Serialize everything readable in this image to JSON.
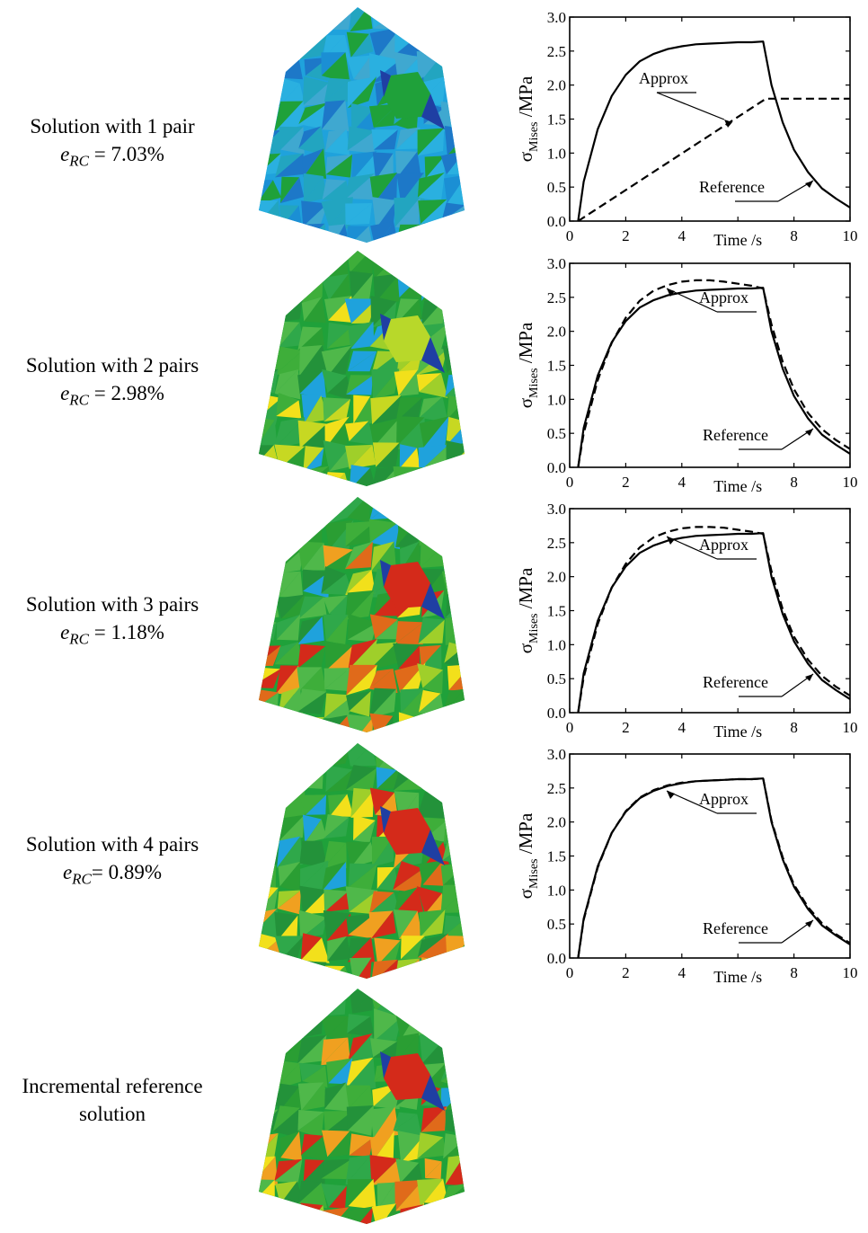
{
  "rows": [
    {
      "label": "Solution with 1 pair",
      "err_symbol": "e",
      "err_sub": "RC",
      "err_eq": " = ",
      "err_value": "7.03%"
    },
    {
      "label": "Solution with 2 pairs",
      "err_symbol": "e",
      "err_sub": "RC",
      "err_eq": " = ",
      "err_value": "2.98%"
    },
    {
      "label": "Solution with 3 pairs",
      "err_symbol": "e",
      "err_sub": "RC",
      "err_eq": " = ",
      "err_value": "1.18%"
    },
    {
      "label": "Solution with 4 pairs",
      "err_symbol": "e",
      "err_sub": "RC",
      "err_eq": "= ",
      "err_value": "0.89%"
    },
    {
      "label": "Incremental reference solution"
    }
  ],
  "colors": {
    "blue_field": "#1fa2dc",
    "green_field": "#1fa13a",
    "yellow": "#f2e01b",
    "red": "#d42a1a",
    "dark_blue": "#1f3fa3"
  },
  "chart_data": [
    {
      "type": "line",
      "xlabel": "Time /s",
      "ylabel_main": "σ",
      "ylabel_sub": "Mises",
      "ylabel_unit": " /MPa",
      "xlim": [
        0,
        10
      ],
      "ylim": [
        0,
        3
      ],
      "xticks": [
        "0",
        "2",
        "4",
        "8",
        "10"
      ],
      "yticks": [
        "0.0",
        "0.5",
        "1.0",
        "1.5",
        "2.0",
        "2.5",
        "3.0"
      ],
      "series": [
        {
          "name": "Reference",
          "style": "solid",
          "x": [
            0.3,
            0.5,
            1.0,
            1.5,
            2.0,
            2.5,
            3.0,
            3.5,
            4.0,
            4.5,
            5.0,
            5.5,
            6.0,
            6.5,
            6.9,
            7.2,
            7.6,
            8.0,
            8.5,
            9.0,
            9.5,
            10.0
          ],
          "y": [
            0.0,
            0.58,
            1.35,
            1.84,
            2.15,
            2.35,
            2.46,
            2.53,
            2.57,
            2.6,
            2.61,
            2.62,
            2.63,
            2.63,
            2.64,
            2.0,
            1.45,
            1.05,
            0.72,
            0.48,
            0.33,
            0.2
          ]
        },
        {
          "name": "Approx",
          "style": "dashed",
          "x": [
            0.3,
            7.0,
            7.2,
            10.0
          ],
          "y": [
            0.0,
            1.8,
            1.8,
            1.8
          ]
        }
      ],
      "annotations": [
        "Approx",
        "Reference"
      ]
    },
    {
      "type": "line",
      "xlabel": "Time /s",
      "ylabel_main": "σ",
      "ylabel_sub": "Mises",
      "ylabel_unit": " /MPa",
      "xlim": [
        0,
        10
      ],
      "ylim": [
        0,
        3
      ],
      "xticks": [
        "0",
        "2",
        "4",
        "8",
        "10"
      ],
      "yticks": [
        "0.0",
        "0.5",
        "1.0",
        "1.5",
        "2.0",
        "2.5",
        "3.0"
      ],
      "series": [
        {
          "name": "Reference",
          "style": "solid",
          "x": [
            0.3,
            0.5,
            1.0,
            1.5,
            2.0,
            2.5,
            3.0,
            3.5,
            4.0,
            4.5,
            5.0,
            5.5,
            6.0,
            6.5,
            6.9,
            7.2,
            7.6,
            8.0,
            8.5,
            9.0,
            9.5,
            10.0
          ],
          "y": [
            0.0,
            0.58,
            1.35,
            1.84,
            2.15,
            2.35,
            2.46,
            2.53,
            2.57,
            2.6,
            2.61,
            2.62,
            2.63,
            2.63,
            2.64,
            2.0,
            1.45,
            1.05,
            0.72,
            0.48,
            0.33,
            0.2
          ]
        },
        {
          "name": "Approx",
          "style": "dashed",
          "x": [
            0.3,
            0.5,
            1.0,
            1.5,
            2.0,
            2.5,
            3.0,
            3.5,
            4.0,
            4.5,
            5.0,
            5.5,
            6.0,
            6.5,
            6.9,
            7.2,
            7.6,
            8.0,
            8.5,
            9.0,
            9.5,
            10.0
          ],
          "y": [
            0.0,
            0.5,
            1.28,
            1.83,
            2.2,
            2.45,
            2.6,
            2.68,
            2.73,
            2.75,
            2.75,
            2.73,
            2.7,
            2.67,
            2.63,
            2.1,
            1.55,
            1.15,
            0.8,
            0.56,
            0.4,
            0.27
          ]
        }
      ],
      "annotations": [
        "Approx",
        "Reference"
      ]
    },
    {
      "type": "line",
      "xlabel": "Time /s",
      "ylabel_main": "σ",
      "ylabel_sub": "Mises",
      "ylabel_unit": " /MPa",
      "xlim": [
        0,
        10
      ],
      "ylim": [
        0,
        3
      ],
      "xticks": [
        "0",
        "2",
        "4",
        "8",
        "10"
      ],
      "yticks": [
        "0.0",
        "0.5",
        "1.0",
        "1.5",
        "2.0",
        "2.5",
        "3.0"
      ],
      "series": [
        {
          "name": "Reference",
          "style": "solid",
          "x": [
            0.3,
            0.5,
            1.0,
            1.5,
            2.0,
            2.5,
            3.0,
            3.5,
            4.0,
            4.5,
            5.0,
            5.5,
            6.0,
            6.5,
            6.9,
            7.2,
            7.6,
            8.0,
            8.5,
            9.0,
            9.5,
            10.0
          ],
          "y": [
            0.0,
            0.58,
            1.35,
            1.84,
            2.15,
            2.35,
            2.46,
            2.53,
            2.57,
            2.6,
            2.61,
            2.62,
            2.63,
            2.63,
            2.64,
            2.0,
            1.45,
            1.05,
            0.72,
            0.48,
            0.33,
            0.2
          ]
        },
        {
          "name": "Approx",
          "style": "dashed",
          "x": [
            0.3,
            0.5,
            1.0,
            1.5,
            2.0,
            2.5,
            3.0,
            3.5,
            4.0,
            4.5,
            5.0,
            5.5,
            6.0,
            6.5,
            6.9,
            7.2,
            7.6,
            8.0,
            8.5,
            9.0,
            9.5,
            10.0
          ],
          "y": [
            0.0,
            0.52,
            1.3,
            1.84,
            2.19,
            2.43,
            2.58,
            2.66,
            2.71,
            2.73,
            2.73,
            2.72,
            2.69,
            2.66,
            2.63,
            2.08,
            1.52,
            1.12,
            0.78,
            0.54,
            0.38,
            0.25
          ]
        }
      ],
      "annotations": [
        "Approx",
        "Reference"
      ]
    },
    {
      "type": "line",
      "xlabel": "Time /s",
      "ylabel_main": "σ",
      "ylabel_sub": "Mises",
      "ylabel_unit": " /MPa",
      "xlim": [
        0,
        10
      ],
      "ylim": [
        0,
        3
      ],
      "xticks": [
        "0",
        "2",
        "4",
        "8",
        "10"
      ],
      "yticks": [
        "0.0",
        "0.5",
        "1.0",
        "1.5",
        "2.0",
        "2.5",
        "3.0"
      ],
      "series": [
        {
          "name": "Reference",
          "style": "solid",
          "x": [
            0.3,
            0.5,
            1.0,
            1.5,
            2.0,
            2.5,
            3.0,
            3.5,
            4.0,
            4.5,
            5.0,
            5.5,
            6.0,
            6.5,
            6.9,
            7.2,
            7.6,
            8.0,
            8.5,
            9.0,
            9.5,
            10.0
          ],
          "y": [
            0.0,
            0.58,
            1.35,
            1.84,
            2.15,
            2.35,
            2.46,
            2.53,
            2.57,
            2.6,
            2.61,
            2.62,
            2.63,
            2.63,
            2.64,
            2.0,
            1.45,
            1.05,
            0.72,
            0.48,
            0.33,
            0.2
          ]
        },
        {
          "name": "Approx",
          "style": "dashed",
          "x": [
            0.3,
            0.5,
            1.0,
            1.5,
            2.0,
            2.5,
            3.0,
            3.5,
            4.0,
            4.5,
            5.0,
            5.5,
            6.0,
            6.5,
            6.9,
            7.2,
            7.6,
            8.0,
            8.5,
            9.0,
            9.5,
            10.0
          ],
          "y": [
            0.0,
            0.56,
            1.33,
            1.84,
            2.16,
            2.36,
            2.47,
            2.54,
            2.58,
            2.6,
            2.61,
            2.62,
            2.63,
            2.63,
            2.64,
            2.02,
            1.48,
            1.08,
            0.75,
            0.51,
            0.35,
            0.22
          ]
        }
      ],
      "annotations": [
        "Approx",
        "Reference"
      ]
    }
  ]
}
